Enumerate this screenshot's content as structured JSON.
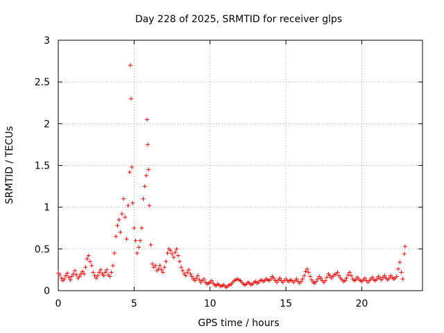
{
  "chart_data": {
    "type": "scatter",
    "title": "Day 228 of 2025, SRMTID for receiver glps",
    "xlabel": "GPS time / hours",
    "ylabel": "SRMTID / TECUs",
    "xlim": [
      0,
      24
    ],
    "ylim": [
      0,
      3
    ],
    "xticks": [
      0,
      5,
      10,
      15,
      20
    ],
    "yticks": [
      0,
      0.5,
      1,
      1.5,
      2,
      2.5,
      3
    ],
    "xtick_labels": [
      "0",
      "5",
      "10",
      "15",
      "20"
    ],
    "ytick_labels": [
      "0",
      "0.5",
      "1",
      "1.5",
      "2",
      "2.5",
      "3"
    ],
    "grid": true,
    "marker": "+",
    "series_color": "#ff0000",
    "series": [
      {
        "name": "SRMTID",
        "points": [
          [
            0.0,
            0.21
          ],
          [
            0.1,
            0.19
          ],
          [
            0.2,
            0.15
          ],
          [
            0.3,
            0.12
          ],
          [
            0.4,
            0.14
          ],
          [
            0.5,
            0.18
          ],
          [
            0.6,
            0.21
          ],
          [
            0.7,
            0.16
          ],
          [
            0.8,
            0.13
          ],
          [
            0.9,
            0.17
          ],
          [
            1.0,
            0.2
          ],
          [
            1.1,
            0.24
          ],
          [
            1.2,
            0.19
          ],
          [
            1.3,
            0.15
          ],
          [
            1.4,
            0.17
          ],
          [
            1.5,
            0.2
          ],
          [
            1.6,
            0.23
          ],
          [
            1.7,
            0.2
          ],
          [
            1.8,
            0.28
          ],
          [
            1.9,
            0.38
          ],
          [
            2.0,
            0.42
          ],
          [
            2.1,
            0.35
          ],
          [
            2.2,
            0.3
          ],
          [
            2.3,
            0.22
          ],
          [
            2.4,
            0.18
          ],
          [
            2.5,
            0.15
          ],
          [
            2.6,
            0.18
          ],
          [
            2.7,
            0.22
          ],
          [
            2.8,
            0.25
          ],
          [
            2.9,
            0.2
          ],
          [
            3.0,
            0.18
          ],
          [
            3.1,
            0.22
          ],
          [
            3.2,
            0.25
          ],
          [
            3.3,
            0.19
          ],
          [
            3.4,
            0.17
          ],
          [
            3.5,
            0.22
          ],
          [
            3.6,
            0.3
          ],
          [
            3.7,
            0.45
          ],
          [
            3.8,
            0.65
          ],
          [
            3.9,
            0.78
          ],
          [
            4.0,
            0.85
          ],
          [
            4.1,
            0.7
          ],
          [
            4.2,
            0.92
          ],
          [
            4.3,
            1.1
          ],
          [
            4.4,
            0.88
          ],
          [
            4.5,
            0.62
          ],
          [
            4.6,
            1.02
          ],
          [
            4.7,
            1.42
          ],
          [
            4.75,
            2.7
          ],
          [
            4.8,
            2.3
          ],
          [
            4.85,
            1.48
          ],
          [
            4.9,
            1.05
          ],
          [
            5.0,
            0.75
          ],
          [
            5.1,
            0.6
          ],
          [
            5.2,
            0.45
          ],
          [
            5.3,
            0.52
          ],
          [
            5.4,
            0.6
          ],
          [
            5.5,
            0.75
          ],
          [
            5.6,
            1.1
          ],
          [
            5.7,
            1.25
          ],
          [
            5.8,
            1.38
          ],
          [
            5.85,
            2.05
          ],
          [
            5.9,
            1.75
          ],
          [
            5.95,
            1.45
          ],
          [
            6.0,
            1.02
          ],
          [
            6.1,
            0.55
          ],
          [
            6.2,
            0.32
          ],
          [
            6.3,
            0.28
          ],
          [
            6.4,
            0.3
          ],
          [
            6.5,
            0.24
          ],
          [
            6.6,
            0.26
          ],
          [
            6.7,
            0.3
          ],
          [
            6.8,
            0.25
          ],
          [
            6.9,
            0.22
          ],
          [
            7.0,
            0.28
          ],
          [
            7.1,
            0.35
          ],
          [
            7.2,
            0.45
          ],
          [
            7.3,
            0.5
          ],
          [
            7.4,
            0.48
          ],
          [
            7.5,
            0.44
          ],
          [
            7.6,
            0.4
          ],
          [
            7.7,
            0.46
          ],
          [
            7.8,
            0.5
          ],
          [
            7.9,
            0.42
          ],
          [
            8.0,
            0.35
          ],
          [
            8.1,
            0.28
          ],
          [
            8.2,
            0.24
          ],
          [
            8.3,
            0.2
          ],
          [
            8.4,
            0.18
          ],
          [
            8.5,
            0.22
          ],
          [
            8.6,
            0.25
          ],
          [
            8.7,
            0.2
          ],
          [
            8.8,
            0.17
          ],
          [
            8.9,
            0.14
          ],
          [
            9.0,
            0.12
          ],
          [
            9.1,
            0.15
          ],
          [
            9.2,
            0.18
          ],
          [
            9.3,
            0.13
          ],
          [
            9.4,
            0.1
          ],
          [
            9.5,
            0.12
          ],
          [
            9.6,
            0.14
          ],
          [
            9.7,
            0.1
          ],
          [
            9.8,
            0.08
          ],
          [
            9.9,
            0.09
          ],
          [
            10.0,
            0.1
          ],
          [
            10.1,
            0.12
          ],
          [
            10.2,
            0.09
          ],
          [
            10.3,
            0.07
          ],
          [
            10.4,
            0.06
          ],
          [
            10.5,
            0.08
          ],
          [
            10.6,
            0.07
          ],
          [
            10.7,
            0.05
          ],
          [
            10.8,
            0.06
          ],
          [
            10.9,
            0.07
          ],
          [
            11.0,
            0.05
          ],
          [
            11.1,
            0.04
          ],
          [
            11.2,
            0.06
          ],
          [
            11.3,
            0.07
          ],
          [
            11.4,
            0.08
          ],
          [
            11.5,
            0.1
          ],
          [
            11.6,
            0.12
          ],
          [
            11.7,
            0.13
          ],
          [
            11.8,
            0.14
          ],
          [
            11.9,
            0.13
          ],
          [
            12.0,
            0.12
          ],
          [
            12.1,
            0.1
          ],
          [
            12.2,
            0.08
          ],
          [
            12.3,
            0.07
          ],
          [
            12.4,
            0.08
          ],
          [
            12.5,
            0.1
          ],
          [
            12.6,
            0.09
          ],
          [
            12.7,
            0.07
          ],
          [
            12.8,
            0.08
          ],
          [
            12.9,
            0.1
          ],
          [
            13.0,
            0.11
          ],
          [
            13.1,
            0.09
          ],
          [
            13.2,
            0.1
          ],
          [
            13.3,
            0.12
          ],
          [
            13.4,
            0.13
          ],
          [
            13.5,
            0.11
          ],
          [
            13.6,
            0.12
          ],
          [
            13.7,
            0.14
          ],
          [
            13.8,
            0.13
          ],
          [
            13.9,
            0.12
          ],
          [
            14.0,
            0.14
          ],
          [
            14.1,
            0.17
          ],
          [
            14.2,
            0.15
          ],
          [
            14.3,
            0.12
          ],
          [
            14.4,
            0.1
          ],
          [
            14.5,
            0.13
          ],
          [
            14.6,
            0.15
          ],
          [
            14.7,
            0.12
          ],
          [
            14.8,
            0.1
          ],
          [
            14.9,
            0.12
          ],
          [
            15.0,
            0.14
          ],
          [
            15.1,
            0.12
          ],
          [
            15.2,
            0.11
          ],
          [
            15.3,
            0.13
          ],
          [
            15.4,
            0.12
          ],
          [
            15.5,
            0.1
          ],
          [
            15.6,
            0.12
          ],
          [
            15.7,
            0.14
          ],
          [
            15.8,
            0.11
          ],
          [
            15.9,
            0.09
          ],
          [
            16.0,
            0.11
          ],
          [
            16.1,
            0.14
          ],
          [
            16.2,
            0.18
          ],
          [
            16.3,
            0.23
          ],
          [
            16.4,
            0.26
          ],
          [
            16.5,
            0.22
          ],
          [
            16.6,
            0.17
          ],
          [
            16.7,
            0.13
          ],
          [
            16.8,
            0.1
          ],
          [
            16.9,
            0.09
          ],
          [
            17.0,
            0.11
          ],
          [
            17.1,
            0.14
          ],
          [
            17.2,
            0.17
          ],
          [
            17.3,
            0.15
          ],
          [
            17.4,
            0.12
          ],
          [
            17.5,
            0.1
          ],
          [
            17.6,
            0.12
          ],
          [
            17.7,
            0.16
          ],
          [
            17.8,
            0.2
          ],
          [
            17.9,
            0.18
          ],
          [
            18.0,
            0.15
          ],
          [
            18.1,
            0.17
          ],
          [
            18.2,
            0.19
          ],
          [
            18.3,
            0.2
          ],
          [
            18.4,
            0.22
          ],
          [
            18.5,
            0.18
          ],
          [
            18.6,
            0.15
          ],
          [
            18.7,
            0.13
          ],
          [
            18.8,
            0.11
          ],
          [
            18.9,
            0.12
          ],
          [
            19.0,
            0.15
          ],
          [
            19.1,
            0.19
          ],
          [
            19.2,
            0.22
          ],
          [
            19.3,
            0.18
          ],
          [
            19.4,
            0.14
          ],
          [
            19.5,
            0.12
          ],
          [
            19.6,
            0.13
          ],
          [
            19.7,
            0.16
          ],
          [
            19.8,
            0.14
          ],
          [
            19.9,
            0.12
          ],
          [
            20.0,
            0.11
          ],
          [
            20.1,
            0.13
          ],
          [
            20.2,
            0.15
          ],
          [
            20.3,
            0.12
          ],
          [
            20.4,
            0.1
          ],
          [
            20.5,
            0.12
          ],
          [
            20.6,
            0.14
          ],
          [
            20.7,
            0.16
          ],
          [
            20.8,
            0.13
          ],
          [
            20.9,
            0.12
          ],
          [
            21.0,
            0.14
          ],
          [
            21.1,
            0.17
          ],
          [
            21.2,
            0.15
          ],
          [
            21.3,
            0.13
          ],
          [
            21.4,
            0.16
          ],
          [
            21.5,
            0.18
          ],
          [
            21.6,
            0.15
          ],
          [
            21.7,
            0.13
          ],
          [
            21.8,
            0.15
          ],
          [
            21.9,
            0.18
          ],
          [
            22.0,
            0.16
          ],
          [
            22.1,
            0.14
          ],
          [
            22.2,
            0.15
          ],
          [
            22.3,
            0.17
          ],
          [
            22.4,
            0.26
          ],
          [
            22.5,
            0.34
          ],
          [
            22.6,
            0.22
          ],
          [
            22.7,
            0.14
          ],
          [
            22.8,
            0.44
          ],
          [
            22.85,
            0.53
          ]
        ]
      }
    ]
  }
}
